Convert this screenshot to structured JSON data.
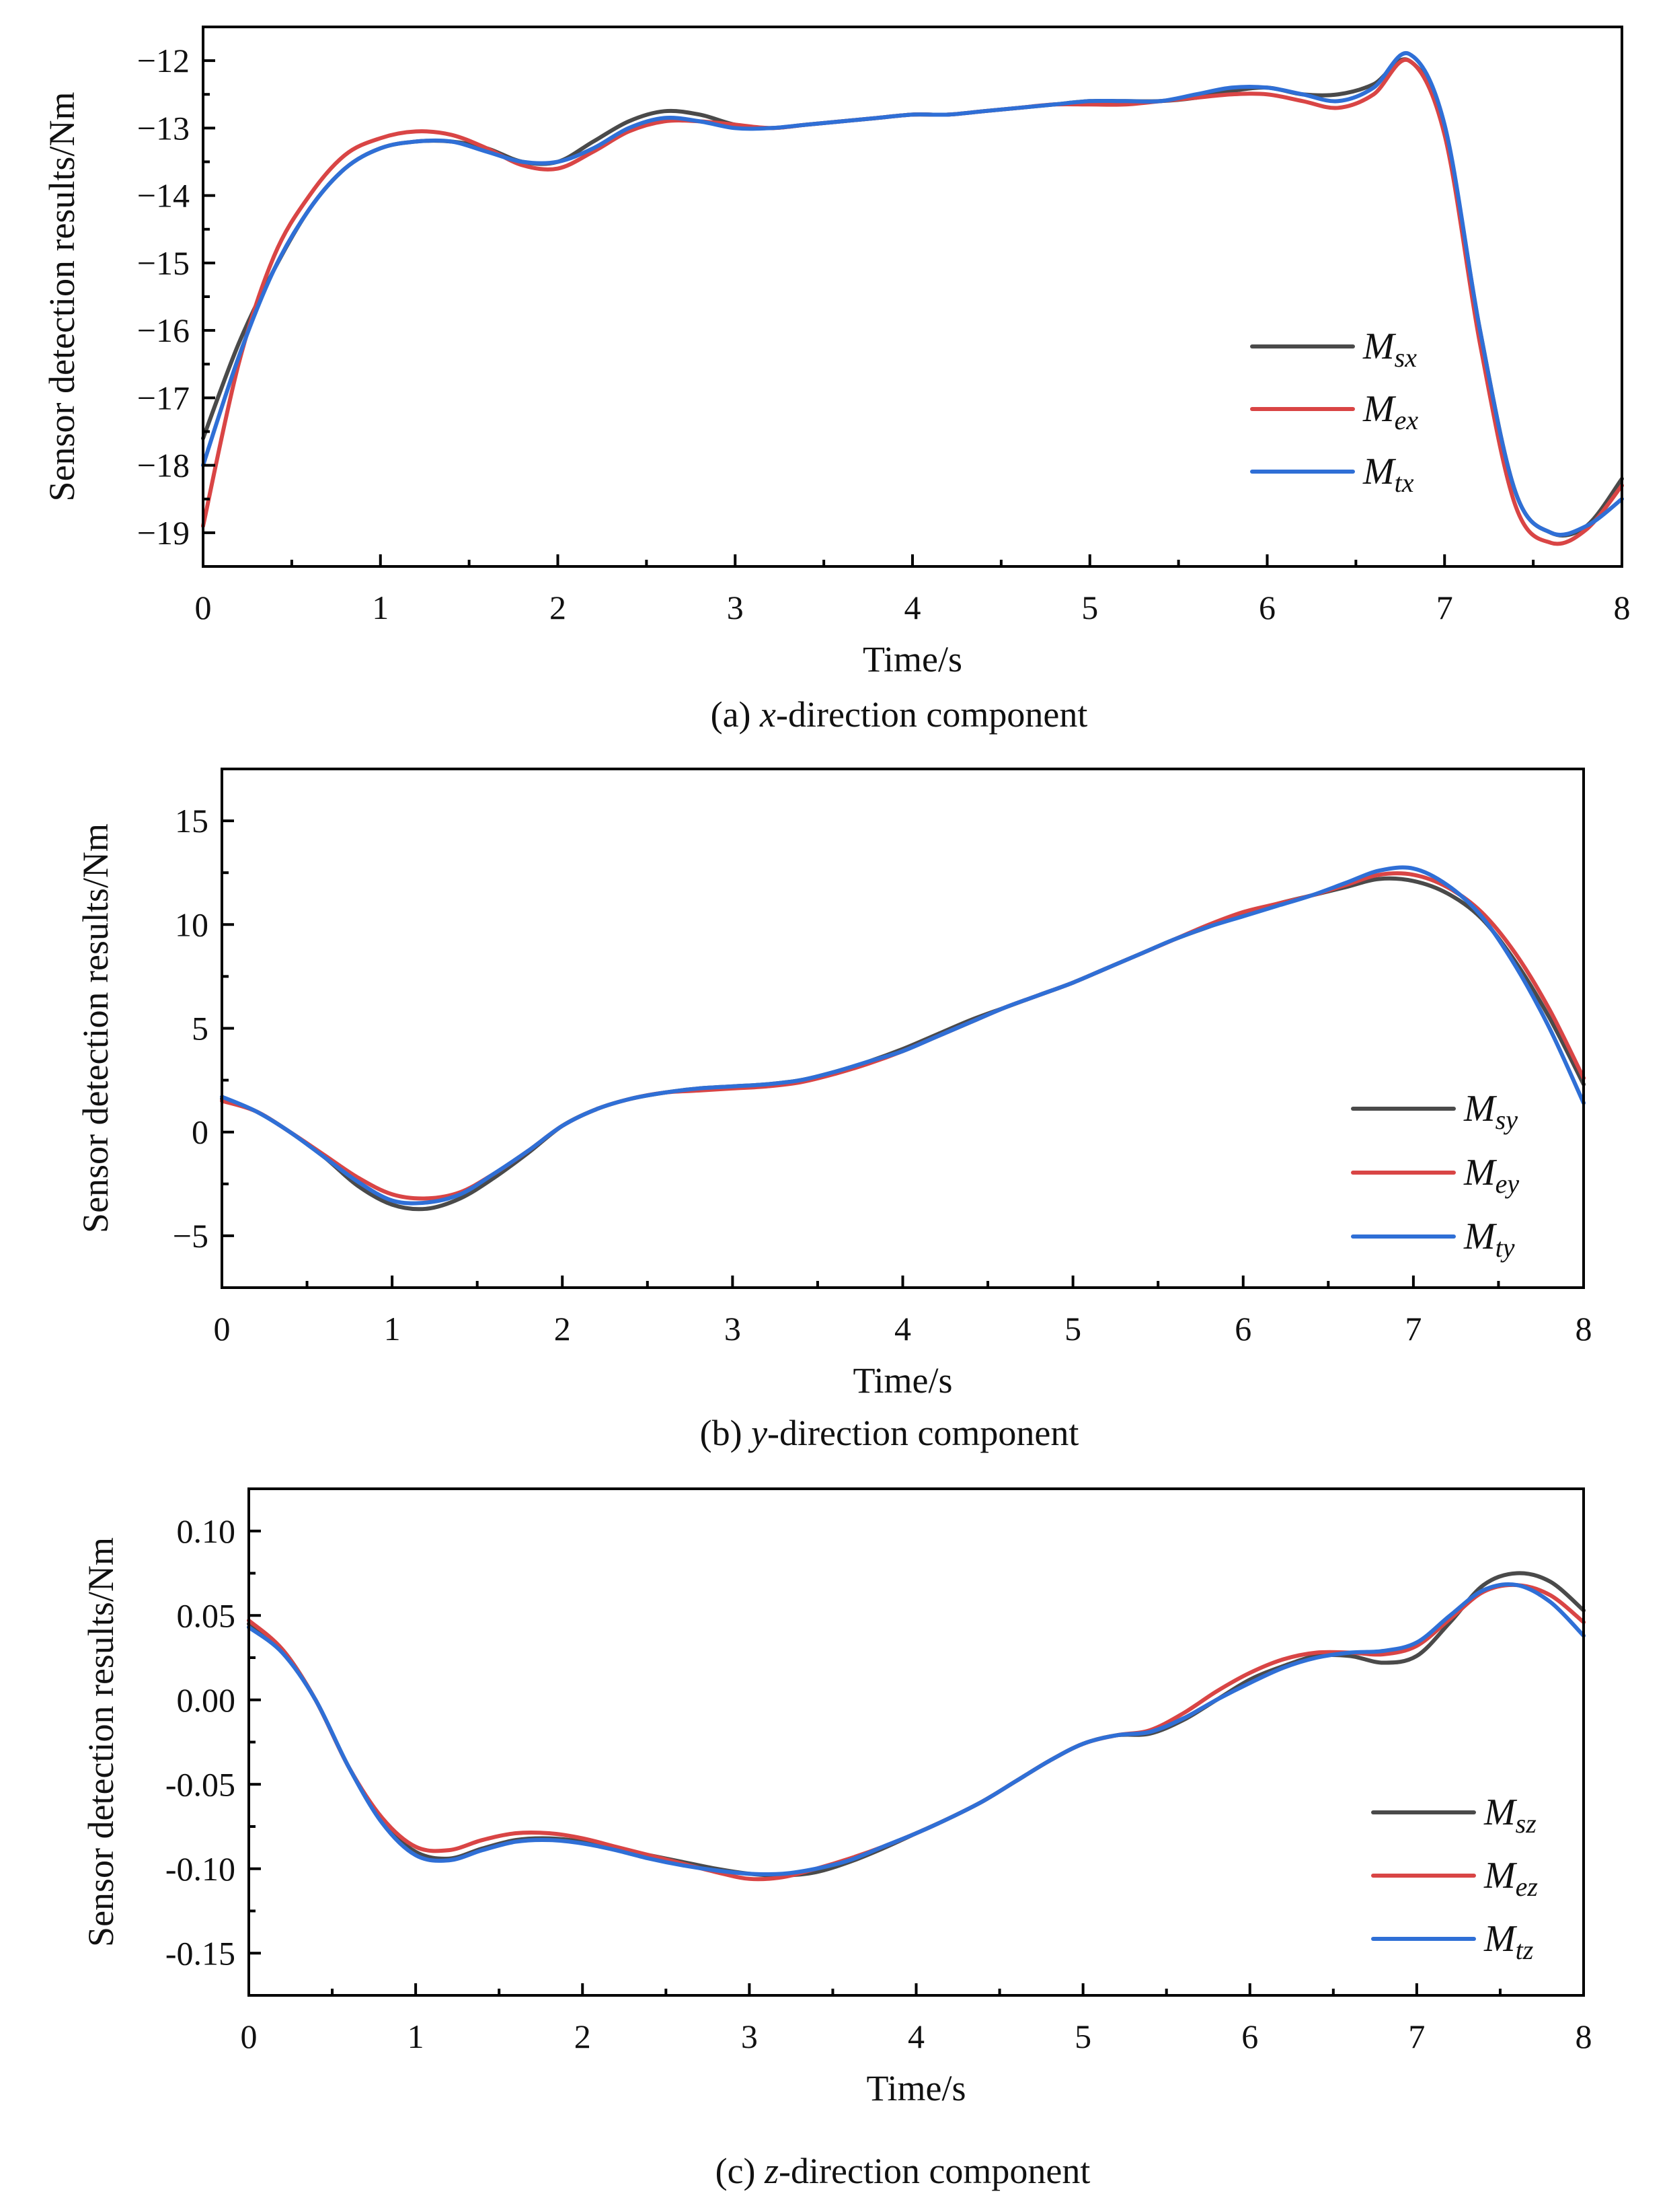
{
  "chart_data": [
    {
      "type": "line",
      "caption_prefix": "(a) ",
      "caption_var": "x",
      "caption_suffix": "-direction component",
      "xlabel": "Time/s",
      "ylabel": "Sensor detection results/Nm",
      "xlim": [
        0,
        8
      ],
      "ylim": [
        -19.5,
        -11.5
      ],
      "xticks": [
        "0",
        "1",
        "2",
        "3",
        "4",
        "5",
        "6",
        "7",
        "8"
      ],
      "xtick_values": [
        0,
        1,
        2,
        3,
        4,
        5,
        6,
        7,
        8
      ],
      "yticks": [
        "−12",
        "−13",
        "−14",
        "−15",
        "−16",
        "−17",
        "−18",
        "−19"
      ],
      "ytick_values": [
        -12,
        -13,
        -14,
        -15,
        -16,
        -17,
        -18,
        -19
      ],
      "legend_position": "right",
      "grid": false,
      "series": [
        {
          "name": "M",
          "sub": "sx",
          "color": "#4a4a4a",
          "x": [
            0,
            0.2,
            0.4,
            0.6,
            0.8,
            1.0,
            1.2,
            1.4,
            1.6,
            1.8,
            2.0,
            2.2,
            2.4,
            2.6,
            2.8,
            3.0,
            3.2,
            3.4,
            3.6,
            3.8,
            4.0,
            4.2,
            4.4,
            4.6,
            4.8,
            5.0,
            5.2,
            5.4,
            5.6,
            5.8,
            6.0,
            6.2,
            6.4,
            6.6,
            6.8,
            7.0,
            7.2,
            7.4,
            7.6,
            7.8,
            8.0
          ],
          "y": [
            -17.6,
            -16.2,
            -15.1,
            -14.2,
            -13.6,
            -13.3,
            -13.2,
            -13.2,
            -13.3,
            -13.5,
            -13.5,
            -13.2,
            -12.9,
            -12.75,
            -12.8,
            -12.95,
            -13.0,
            -12.95,
            -12.9,
            -12.85,
            -12.8,
            -12.8,
            -12.75,
            -12.7,
            -12.65,
            -12.6,
            -12.6,
            -12.6,
            -12.55,
            -12.45,
            -12.4,
            -12.5,
            -12.5,
            -12.35,
            -12.0,
            -13.0,
            -16.0,
            -18.4,
            -19.0,
            -18.9,
            -18.2
          ]
        },
        {
          "name": "M",
          "sub": "ex",
          "color": "#d94545",
          "x": [
            0,
            0.2,
            0.4,
            0.6,
            0.8,
            1.0,
            1.2,
            1.4,
            1.6,
            1.8,
            2.0,
            2.2,
            2.4,
            2.6,
            2.8,
            3.0,
            3.2,
            3.4,
            3.6,
            3.8,
            4.0,
            4.2,
            4.4,
            4.6,
            4.8,
            5.0,
            5.2,
            5.4,
            5.6,
            5.8,
            6.0,
            6.2,
            6.4,
            6.6,
            6.8,
            7.0,
            7.2,
            7.4,
            7.6,
            7.8,
            8.0
          ],
          "y": [
            -18.9,
            -16.5,
            -14.9,
            -14.0,
            -13.4,
            -13.15,
            -13.05,
            -13.1,
            -13.3,
            -13.55,
            -13.6,
            -13.35,
            -13.05,
            -12.9,
            -12.9,
            -12.95,
            -13.0,
            -12.95,
            -12.9,
            -12.85,
            -12.8,
            -12.8,
            -12.75,
            -12.7,
            -12.65,
            -12.65,
            -12.65,
            -12.6,
            -12.55,
            -12.5,
            -12.5,
            -12.6,
            -12.7,
            -12.5,
            -12.0,
            -13.1,
            -16.2,
            -18.6,
            -19.15,
            -18.95,
            -18.3
          ]
        },
        {
          "name": "M",
          "sub": "tx",
          "color": "#2f6fd6",
          "x": [
            0,
            0.2,
            0.4,
            0.6,
            0.8,
            1.0,
            1.2,
            1.4,
            1.6,
            1.8,
            2.0,
            2.2,
            2.4,
            2.6,
            2.8,
            3.0,
            3.2,
            3.4,
            3.6,
            3.8,
            4.0,
            4.2,
            4.4,
            4.6,
            4.8,
            5.0,
            5.2,
            5.4,
            5.6,
            5.8,
            6.0,
            6.2,
            6.4,
            6.6,
            6.8,
            7.0,
            7.2,
            7.4,
            7.6,
            7.8,
            8.0
          ],
          "y": [
            -18.0,
            -16.4,
            -15.1,
            -14.2,
            -13.6,
            -13.3,
            -13.2,
            -13.2,
            -13.35,
            -13.5,
            -13.5,
            -13.3,
            -13.0,
            -12.85,
            -12.9,
            -13.0,
            -13.0,
            -12.95,
            -12.9,
            -12.85,
            -12.8,
            -12.8,
            -12.75,
            -12.7,
            -12.65,
            -12.6,
            -12.6,
            -12.6,
            -12.5,
            -12.4,
            -12.4,
            -12.5,
            -12.6,
            -12.4,
            -11.9,
            -12.95,
            -16.0,
            -18.4,
            -19.0,
            -18.9,
            -18.5
          ]
        }
      ]
    },
    {
      "type": "line",
      "caption_prefix": "(b) ",
      "caption_var": "y",
      "caption_suffix": "-direction component",
      "xlabel": "Time/s",
      "ylabel": "Sensor detection results/Nm",
      "xlim": [
        0,
        8
      ],
      "ylim": [
        -7.5,
        17.5
      ],
      "xticks": [
        "0",
        "1",
        "2",
        "3",
        "4",
        "5",
        "6",
        "7",
        "8"
      ],
      "xtick_values": [
        0,
        1,
        2,
        3,
        4,
        5,
        6,
        7,
        8
      ],
      "yticks": [
        "15",
        "10",
        "5",
        "0",
        "−5"
      ],
      "ytick_values": [
        15,
        10,
        5,
        0,
        -5
      ],
      "legend_position": "bottom-right",
      "grid": false,
      "series": [
        {
          "name": "M",
          "sub": "sy",
          "color": "#4a4a4a",
          "x": [
            0,
            0.2,
            0.4,
            0.6,
            0.8,
            1.0,
            1.2,
            1.4,
            1.6,
            1.8,
            2.0,
            2.2,
            2.4,
            2.6,
            2.8,
            3.0,
            3.2,
            3.4,
            3.6,
            3.8,
            4.0,
            4.2,
            4.4,
            4.6,
            4.8,
            5.0,
            5.2,
            5.4,
            5.6,
            5.8,
            6.0,
            6.2,
            6.4,
            6.6,
            6.8,
            7.0,
            7.2,
            7.4,
            7.6,
            7.8,
            8.0
          ],
          "y": [
            1.6,
            1.0,
            0.0,
            -1.2,
            -2.6,
            -3.5,
            -3.7,
            -3.2,
            -2.2,
            -1.0,
            0.3,
            1.1,
            1.6,
            1.9,
            2.1,
            2.2,
            2.3,
            2.5,
            2.9,
            3.4,
            4.0,
            4.7,
            5.4,
            6.0,
            6.6,
            7.2,
            7.9,
            8.6,
            9.3,
            9.9,
            10.5,
            11.0,
            11.4,
            11.8,
            12.2,
            12.1,
            11.5,
            10.3,
            8.2,
            5.5,
            2.3
          ]
        },
        {
          "name": "M",
          "sub": "ey",
          "color": "#d94545",
          "x": [
            0,
            0.2,
            0.4,
            0.6,
            0.8,
            1.0,
            1.2,
            1.4,
            1.6,
            1.8,
            2.0,
            2.2,
            2.4,
            2.6,
            2.8,
            3.0,
            3.2,
            3.4,
            3.6,
            3.8,
            4.0,
            4.2,
            4.4,
            4.6,
            4.8,
            5.0,
            5.2,
            5.4,
            5.6,
            5.8,
            6.0,
            6.2,
            6.4,
            6.6,
            6.8,
            7.0,
            7.2,
            7.4,
            7.6,
            7.8,
            8.0
          ],
          "y": [
            1.5,
            1.0,
            0.0,
            -1.1,
            -2.2,
            -3.0,
            -3.2,
            -2.9,
            -2.0,
            -0.9,
            0.3,
            1.1,
            1.6,
            1.9,
            2.0,
            2.1,
            2.2,
            2.4,
            2.8,
            3.3,
            3.9,
            4.6,
            5.3,
            6.0,
            6.6,
            7.2,
            7.9,
            8.6,
            9.3,
            10.0,
            10.6,
            11.0,
            11.4,
            11.9,
            12.4,
            12.4,
            11.8,
            10.6,
            8.6,
            5.9,
            2.6
          ]
        },
        {
          "name": "M",
          "sub": "ty",
          "color": "#2f6fd6",
          "x": [
            0,
            0.2,
            0.4,
            0.6,
            0.8,
            1.0,
            1.2,
            1.4,
            1.6,
            1.8,
            2.0,
            2.2,
            2.4,
            2.6,
            2.8,
            3.0,
            3.2,
            3.4,
            3.6,
            3.8,
            4.0,
            4.2,
            4.4,
            4.6,
            4.8,
            5.0,
            5.2,
            5.4,
            5.6,
            5.8,
            6.0,
            6.2,
            6.4,
            6.6,
            6.8,
            7.0,
            7.2,
            7.4,
            7.6,
            7.8,
            8.0
          ],
          "y": [
            1.7,
            1.0,
            0.0,
            -1.2,
            -2.4,
            -3.3,
            -3.4,
            -3.0,
            -2.0,
            -0.9,
            0.3,
            1.1,
            1.6,
            1.9,
            2.1,
            2.2,
            2.3,
            2.5,
            2.9,
            3.4,
            3.9,
            4.6,
            5.3,
            6.0,
            6.6,
            7.2,
            7.9,
            8.6,
            9.3,
            9.9,
            10.4,
            10.9,
            11.4,
            12.0,
            12.6,
            12.7,
            11.9,
            10.4,
            8.0,
            5.0,
            1.4
          ]
        }
      ]
    },
    {
      "type": "line",
      "caption_prefix": "(c) ",
      "caption_var": "z",
      "caption_suffix": "-direction component",
      "xlabel": "Time/s",
      "ylabel": "Sensor detection results/Nm",
      "xlim": [
        0,
        8
      ],
      "ylim": [
        -0.175,
        0.125
      ],
      "xticks": [
        "0",
        "1",
        "2",
        "3",
        "4",
        "5",
        "6",
        "7",
        "8"
      ],
      "xtick_values": [
        0,
        1,
        2,
        3,
        4,
        5,
        6,
        7,
        8
      ],
      "yticks": [
        "0.10",
        "0.05",
        "0.00",
        "-0.05",
        "-0.10",
        "-0.15"
      ],
      "ytick_values": [
        0.1,
        0.05,
        0.0,
        -0.05,
        -0.1,
        -0.15
      ],
      "legend_position": "bottom-right",
      "grid": false,
      "series": [
        {
          "name": "M",
          "sub": "sz",
          "color": "#4a4a4a",
          "x": [
            0,
            0.2,
            0.4,
            0.6,
            0.8,
            1.0,
            1.2,
            1.4,
            1.6,
            1.8,
            2.0,
            2.2,
            2.4,
            2.6,
            2.8,
            3.0,
            3.2,
            3.4,
            3.6,
            3.8,
            4.0,
            4.2,
            4.4,
            4.6,
            4.8,
            5.0,
            5.2,
            5.4,
            5.6,
            5.8,
            6.0,
            6.2,
            6.4,
            6.6,
            6.8,
            7.0,
            7.2,
            7.4,
            7.6,
            7.8,
            8.0
          ],
          "y": [
            0.045,
            0.03,
            0.0,
            -0.04,
            -0.072,
            -0.09,
            -0.094,
            -0.088,
            -0.083,
            -0.082,
            -0.084,
            -0.088,
            -0.092,
            -0.096,
            -0.1,
            -0.103,
            -0.104,
            -0.102,
            -0.096,
            -0.088,
            -0.079,
            -0.07,
            -0.06,
            -0.048,
            -0.036,
            -0.026,
            -0.021,
            -0.02,
            -0.012,
            0.0,
            0.012,
            0.02,
            0.026,
            0.026,
            0.022,
            0.026,
            0.046,
            0.068,
            0.075,
            0.07,
            0.053
          ]
        },
        {
          "name": "M",
          "sub": "ez",
          "color": "#d94545",
          "x": [
            0,
            0.2,
            0.4,
            0.6,
            0.8,
            1.0,
            1.2,
            1.4,
            1.6,
            1.8,
            2.0,
            2.2,
            2.4,
            2.6,
            2.8,
            3.0,
            3.2,
            3.4,
            3.6,
            3.8,
            4.0,
            4.2,
            4.4,
            4.6,
            4.8,
            5.0,
            5.2,
            5.4,
            5.6,
            5.8,
            6.0,
            6.2,
            6.4,
            6.6,
            6.8,
            7.0,
            7.2,
            7.4,
            7.6,
            7.8,
            8.0
          ],
          "y": [
            0.047,
            0.03,
            0.0,
            -0.04,
            -0.07,
            -0.087,
            -0.089,
            -0.083,
            -0.079,
            -0.079,
            -0.082,
            -0.087,
            -0.092,
            -0.097,
            -0.102,
            -0.106,
            -0.105,
            -0.1,
            -0.094,
            -0.087,
            -0.079,
            -0.07,
            -0.06,
            -0.048,
            -0.036,
            -0.026,
            -0.021,
            -0.018,
            -0.008,
            0.005,
            0.016,
            0.024,
            0.028,
            0.028,
            0.027,
            0.032,
            0.048,
            0.064,
            0.068,
            0.062,
            0.046
          ]
        },
        {
          "name": "M",
          "sub": "tz",
          "color": "#2f6fd6",
          "x": [
            0,
            0.2,
            0.4,
            0.6,
            0.8,
            1.0,
            1.2,
            1.4,
            1.6,
            1.8,
            2.0,
            2.2,
            2.4,
            2.6,
            2.8,
            3.0,
            3.2,
            3.4,
            3.6,
            3.8,
            4.0,
            4.2,
            4.4,
            4.6,
            4.8,
            5.0,
            5.2,
            5.4,
            5.6,
            5.8,
            6.0,
            6.2,
            6.4,
            6.6,
            6.8,
            7.0,
            7.2,
            7.4,
            7.6,
            7.8,
            8.0
          ],
          "y": [
            0.043,
            0.028,
            0.0,
            -0.04,
            -0.073,
            -0.092,
            -0.095,
            -0.089,
            -0.084,
            -0.083,
            -0.085,
            -0.089,
            -0.094,
            -0.098,
            -0.101,
            -0.103,
            -0.103,
            -0.1,
            -0.095,
            -0.087,
            -0.079,
            -0.07,
            -0.06,
            -0.048,
            -0.036,
            -0.026,
            -0.021,
            -0.019,
            -0.011,
            0.0,
            0.01,
            0.019,
            0.025,
            0.028,
            0.029,
            0.034,
            0.05,
            0.065,
            0.068,
            0.058,
            0.038
          ]
        }
      ]
    }
  ]
}
